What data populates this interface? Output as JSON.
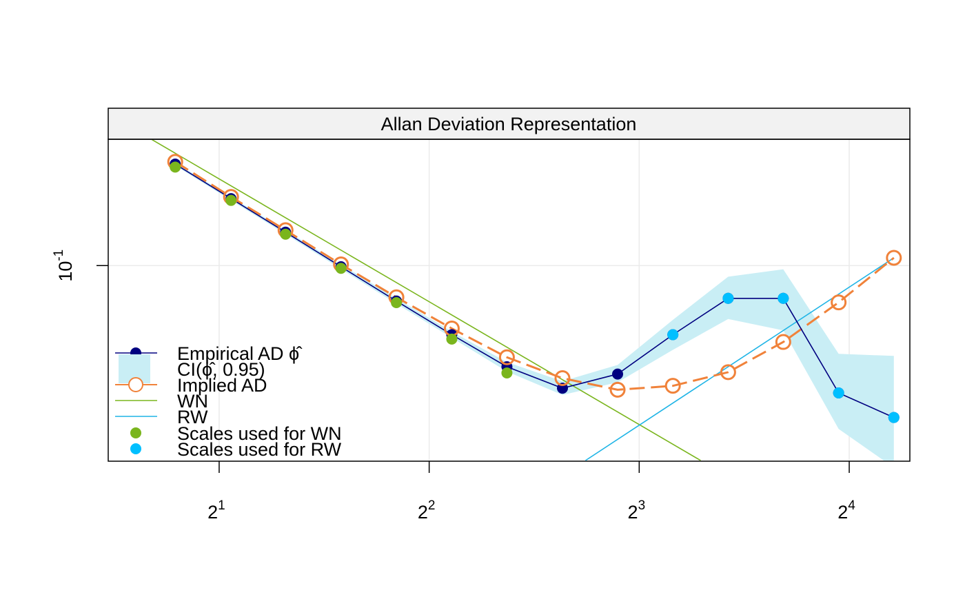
{
  "chart_data": {
    "type": "line",
    "title": "Allan Deviation Representation",
    "xlabel": "",
    "ylabel": "",
    "x_scale": "log2",
    "y_scale": "log10",
    "xlim": [
      1.39,
      19.5
    ],
    "ylim": [
      0.0431,
      0.172
    ],
    "x_ticks": [
      {
        "value": 2,
        "base": "2",
        "exp": "1"
      },
      {
        "value": 4,
        "base": "2",
        "exp": "2"
      },
      {
        "value": 8,
        "base": "2",
        "exp": "3"
      },
      {
        "value": 16,
        "base": "2",
        "exp": "4"
      }
    ],
    "y_ticks": [
      {
        "value": 0.1,
        "base": "10",
        "exp": "-1"
      }
    ],
    "grid": true,
    "legend_position": "bottom-left",
    "series": [
      {
        "name": "Empirical AD ϕ̂",
        "color": "#000080",
        "style": "line-filled-points",
        "x": [
          1.73,
          2.08,
          2.49,
          2.99,
          3.59,
          4.31,
          5.17,
          6.21,
          7.45,
          8.94,
          10.73,
          12.87,
          15.45,
          18.54
        ],
        "y": [
          0.155,
          0.1335,
          0.1155,
          0.0995,
          0.0858,
          0.0742,
          0.0646,
          0.0589,
          0.0626,
          0.0742,
          0.0868,
          0.0868,
          0.0577,
          0.0519
        ]
      },
      {
        "name": "CI(ϕ̂, 0.95)",
        "color": "#c9eef5",
        "style": "band",
        "x": [
          1.73,
          2.08,
          2.49,
          2.99,
          3.59,
          4.31,
          5.17,
          6.21,
          7.45,
          8.94,
          10.73,
          12.87,
          15.45,
          18.54
        ],
        "lower": [
          0.154,
          0.1325,
          0.1145,
          0.0985,
          0.0848,
          0.0732,
          0.0633,
          0.0572,
          0.0604,
          0.0695,
          0.0794,
          0.0756,
          0.0494,
          0.0418
        ],
        "upper": [
          0.156,
          0.1345,
          0.1165,
          0.1005,
          0.0868,
          0.0752,
          0.0659,
          0.0607,
          0.0651,
          0.0791,
          0.0953,
          0.0984,
          0.0683,
          0.0677
        ]
      },
      {
        "name": "Implied AD",
        "color": "#f0823a",
        "style": "dashed-open-circles",
        "x": [
          1.73,
          2.08,
          2.49,
          2.99,
          3.59,
          4.31,
          5.17,
          6.21,
          7.45,
          8.94,
          10.73,
          12.87,
          15.45,
          18.54
        ],
        "y": [
          0.1565,
          0.1345,
          0.1165,
          0.1005,
          0.0872,
          0.0762,
          0.0673,
          0.0615,
          0.0585,
          0.0595,
          0.0631,
          0.0719,
          0.0853,
          0.1034
        ]
      },
      {
        "name": "WN",
        "color": "#7ab51d",
        "style": "line",
        "x": [
          1.39,
          9.8
        ],
        "y": [
          0.192,
          0.0431
        ]
      },
      {
        "name": "RW",
        "color": "#1eb4e6",
        "style": "line",
        "x": [
          6.7,
          18.54
        ],
        "y": [
          0.0431,
          0.1034
        ]
      },
      {
        "name": "Scales used for WN",
        "color": "#7ab51d",
        "style": "points",
        "x": [
          1.73,
          2.08,
          2.49,
          2.99,
          3.59,
          4.31,
          5.17
        ],
        "y": [
          0.153,
          0.1325,
          0.1145,
          0.0988,
          0.0852,
          0.0728,
          0.0629
        ]
      },
      {
        "name": "Scales used for RW",
        "color": "#00bfff",
        "style": "points",
        "x": [
          8.94,
          10.73,
          12.87,
          15.45,
          18.54
        ],
        "y": [
          0.0742,
          0.0868,
          0.0868,
          0.0577,
          0.0519
        ]
      }
    ]
  }
}
